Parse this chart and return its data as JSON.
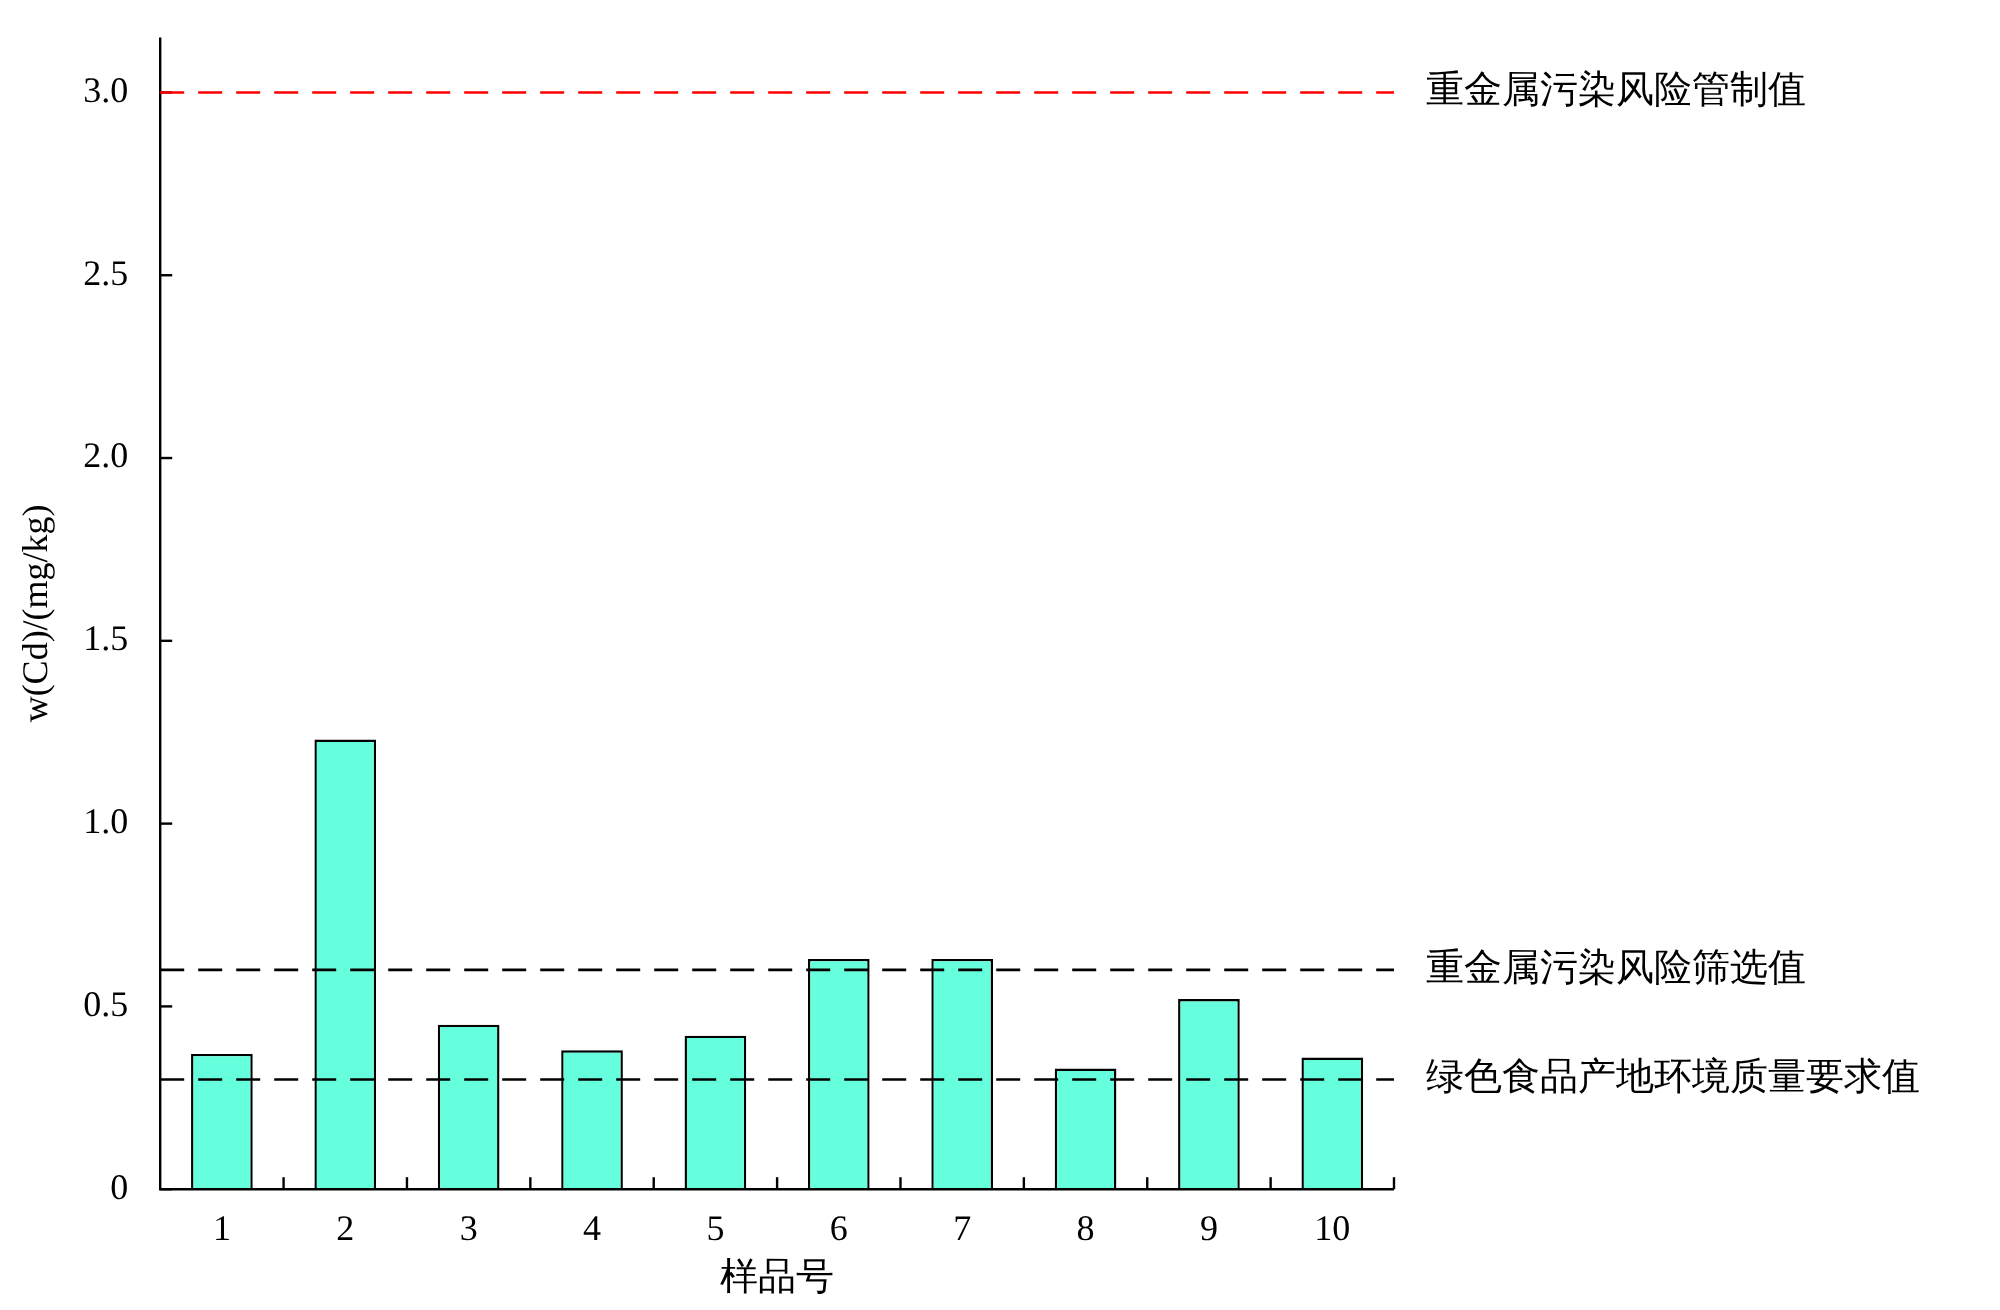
{
  "chart_data": {
    "type": "bar",
    "xlabel": "样品号",
    "ylabel": "w(Cd)/(mg/kg)",
    "categories": [
      "1",
      "2",
      "3",
      "4",
      "5",
      "6",
      "7",
      "8",
      "9",
      "10"
    ],
    "values": [
      0.37,
      1.23,
      0.45,
      0.38,
      0.42,
      0.63,
      0.63,
      0.33,
      0.52,
      0.36
    ],
    "color": "#66ffdd",
    "ylim": [
      0,
      3.15
    ],
    "yticks": [
      {
        "value": 0,
        "label": "0"
      },
      {
        "value": 0.5,
        "label": "0.5"
      },
      {
        "value": 1,
        "label": "1.0"
      },
      {
        "value": 1.5,
        "label": "1.5"
      },
      {
        "value": 2,
        "label": "2.0"
      },
      {
        "value": 2.5,
        "label": "2.5"
      },
      {
        "value": 3,
        "label": "3.0"
      }
    ],
    "grid": false,
    "legend": false,
    "ref_lines": [
      {
        "axis": "y",
        "value": 3,
        "label": "重金属污染风险管制值",
        "color": "#ff0000",
        "line_style": "dashed"
      },
      {
        "axis": "y",
        "value": 0.6,
        "label": "重金属污染风险筛选值",
        "color": "#000000",
        "line_style": "dashed"
      },
      {
        "axis": "y",
        "value": 0.3,
        "label": "绿色食品产地环境质量要求值",
        "color": "#000000",
        "line_style": "dashed"
      }
    ]
  }
}
